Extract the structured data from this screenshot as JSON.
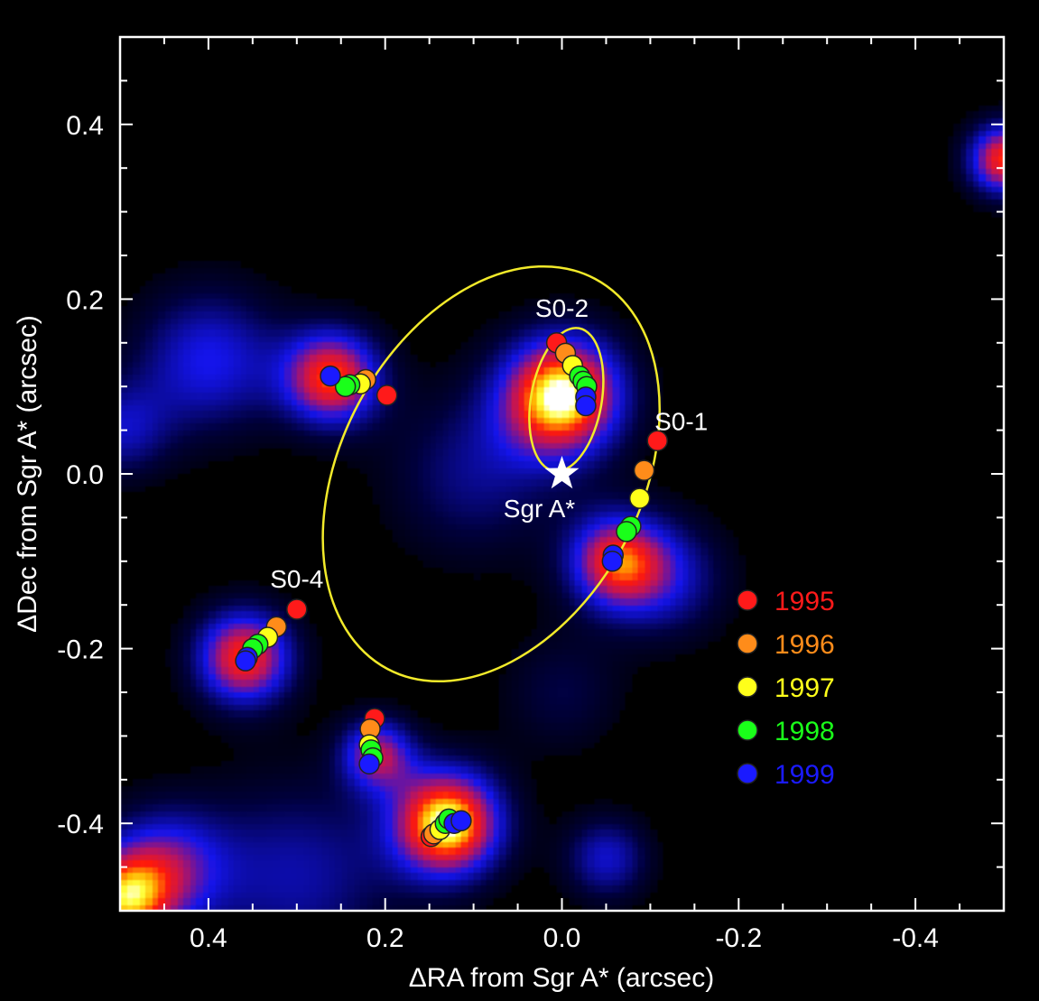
{
  "chart_data": {
    "type": "scatter",
    "title": "",
    "xlabel": "ΔRA from Sgr A* (arcsec)",
    "ylabel": "ΔDec from Sgr A* (arcsec)",
    "xlim": [
      0.5,
      -0.5
    ],
    "ylim": [
      -0.5,
      0.5
    ],
    "xticks": [
      0.4,
      0.2,
      0.0,
      -0.2,
      -0.4
    ],
    "xtick_labels": [
      "0.4",
      "0.2",
      "0.0",
      "-0.2",
      "-0.4"
    ],
    "yticks": [
      0.4,
      0.2,
      0.0,
      -0.2,
      -0.4
    ],
    "ytick_labels": [
      "0.4",
      "0.2",
      "0.0",
      "-0.2",
      "-0.4"
    ],
    "grid": false,
    "background": "infrared image (false color)",
    "colors": {
      "frame": "#ffffff",
      "orbit": "#f2ea2a",
      "star_marker": "#ffffff"
    },
    "legend": {
      "placement": "right-middle",
      "entries": [
        {
          "label": "1995",
          "color": "#ff1a1a"
        },
        {
          "label": "1996",
          "color": "#ff8c1a"
        },
        {
          "label": "1997",
          "color": "#ffff1a"
        },
        {
          "label": "1998",
          "color": "#1aff1a"
        },
        {
          "label": "1999",
          "color": "#1a1aff"
        }
      ]
    },
    "reference": {
      "label": "Sgr A*",
      "x": 0.0,
      "y": 0.0
    },
    "labeled_stars": [
      {
        "name": "S0-2",
        "x": 0.0,
        "y": 0.18
      },
      {
        "name": "S0-1",
        "x": -0.135,
        "y": 0.05
      },
      {
        "name": "S0-4",
        "x": 0.3,
        "y": -0.13
      }
    ],
    "orbits": [
      {
        "name": "large",
        "center_x": 0.08,
        "center_y": 0.0,
        "semi_major": 0.25,
        "semi_minor": 0.17,
        "angle_deg": 62
      },
      {
        "name": "S0-2",
        "center_x": -0.005,
        "center_y": 0.085,
        "semi_major": 0.082,
        "semi_minor": 0.04,
        "angle_deg": 80
      }
    ],
    "image_sources": [
      {
        "x": 0.0,
        "y": 0.09,
        "size": 0.05,
        "strength": 1.0
      },
      {
        "x": 0.13,
        "y": -0.4,
        "size": 0.045,
        "strength": 1.0
      },
      {
        "x": 0.26,
        "y": 0.11,
        "size": 0.04,
        "strength": 0.8
      },
      {
        "x": 0.36,
        "y": -0.21,
        "size": 0.04,
        "strength": 0.8
      },
      {
        "x": -0.06,
        "y": -0.1,
        "size": 0.04,
        "strength": 0.7
      },
      {
        "x": 0.21,
        "y": -0.32,
        "size": 0.03,
        "strength": 0.6
      },
      {
        "x": -0.5,
        "y": 0.36,
        "size": 0.03,
        "strength": 0.8
      },
      {
        "x": 0.5,
        "y": -0.49,
        "size": 0.04,
        "strength": 0.7
      },
      {
        "x": 0.4,
        "y": 0.13,
        "size": 0.06,
        "strength": 0.45
      },
      {
        "x": 0.1,
        "y": 0.0,
        "size": 0.07,
        "strength": 0.3
      },
      {
        "x": -0.12,
        "y": -0.12,
        "size": 0.05,
        "strength": 0.35
      },
      {
        "x": 0.45,
        "y": -0.45,
        "size": 0.05,
        "strength": 0.5
      },
      {
        "x": -0.05,
        "y": -0.44,
        "size": 0.035,
        "strength": 0.4
      },
      {
        "x": 0.3,
        "y": -0.46,
        "size": 0.08,
        "strength": 0.35
      },
      {
        "x": 0.5,
        "y": 0.05,
        "size": 0.04,
        "strength": 0.35
      },
      {
        "x": 0.0,
        "y": -0.25,
        "size": 0.05,
        "strength": 0.2
      }
    ],
    "series": [
      {
        "name": "S0-2",
        "points": [
          {
            "year": "1995",
            "x": 0.006,
            "y": 0.15
          },
          {
            "year": "1996",
            "x": -0.004,
            "y": 0.138
          },
          {
            "year": "1997",
            "x": -0.012,
            "y": 0.124
          },
          {
            "year": "1998",
            "x": -0.02,
            "y": 0.112
          },
          {
            "year": "1998",
            "x": -0.024,
            "y": 0.106
          },
          {
            "year": "1998",
            "x": -0.028,
            "y": 0.1
          },
          {
            "year": "1999",
            "x": -0.027,
            "y": 0.088
          },
          {
            "year": "1999",
            "x": -0.027,
            "y": 0.078
          }
        ]
      },
      {
        "name": "S0-1",
        "points": [
          {
            "year": "1995",
            "x": -0.108,
            "y": 0.038
          },
          {
            "year": "1996",
            "x": -0.093,
            "y": 0.004
          },
          {
            "year": "1997",
            "x": -0.088,
            "y": -0.028
          },
          {
            "year": "1998",
            "x": -0.078,
            "y": -0.06
          },
          {
            "year": "1998",
            "x": -0.073,
            "y": -0.066
          },
          {
            "year": "1999",
            "x": -0.058,
            "y": -0.093
          },
          {
            "year": "1999",
            "x": -0.057,
            "y": -0.1
          }
        ]
      },
      {
        "name": "S0-4",
        "points": [
          {
            "year": "1995",
            "x": 0.3,
            "y": -0.155
          },
          {
            "year": "1996",
            "x": 0.323,
            "y": -0.175
          },
          {
            "year": "1997",
            "x": 0.333,
            "y": -0.187
          },
          {
            "year": "1998",
            "x": 0.344,
            "y": -0.195
          },
          {
            "year": "1998",
            "x": 0.35,
            "y": -0.2
          },
          {
            "year": "1999",
            "x": 0.356,
            "y": -0.21
          },
          {
            "year": "1999",
            "x": 0.358,
            "y": -0.214
          }
        ]
      },
      {
        "name": "star near (0.24, 0.10)",
        "points": [
          {
            "year": "1995",
            "x": 0.198,
            "y": 0.09
          },
          {
            "year": "1996",
            "x": 0.222,
            "y": 0.108
          },
          {
            "year": "1997",
            "x": 0.228,
            "y": 0.103
          },
          {
            "year": "1998",
            "x": 0.24,
            "y": 0.102
          },
          {
            "year": "1998",
            "x": 0.245,
            "y": 0.1
          },
          {
            "year": "1999",
            "x": 0.262,
            "y": 0.112
          }
        ]
      },
      {
        "name": "star near (0.21, -0.32)",
        "points": [
          {
            "year": "1995",
            "x": 0.212,
            "y": -0.28
          },
          {
            "year": "1996",
            "x": 0.217,
            "y": -0.292
          },
          {
            "year": "1997",
            "x": 0.218,
            "y": -0.31
          },
          {
            "year": "1998",
            "x": 0.216,
            "y": -0.316
          },
          {
            "year": "1998",
            "x": 0.214,
            "y": -0.325
          },
          {
            "year": "1999",
            "x": 0.218,
            "y": -0.332
          }
        ]
      },
      {
        "name": "star near (0.13, -0.40)",
        "points": [
          {
            "year": "1995",
            "x": 0.148,
            "y": -0.415
          },
          {
            "year": "1996",
            "x": 0.145,
            "y": -0.412
          },
          {
            "year": "1997",
            "x": 0.138,
            "y": -0.407
          },
          {
            "year": "1998",
            "x": 0.132,
            "y": -0.4
          },
          {
            "year": "1998",
            "x": 0.128,
            "y": -0.395
          },
          {
            "year": "1999",
            "x": 0.122,
            "y": -0.4
          },
          {
            "year": "1999",
            "x": 0.114,
            "y": -0.397
          }
        ]
      }
    ]
  }
}
